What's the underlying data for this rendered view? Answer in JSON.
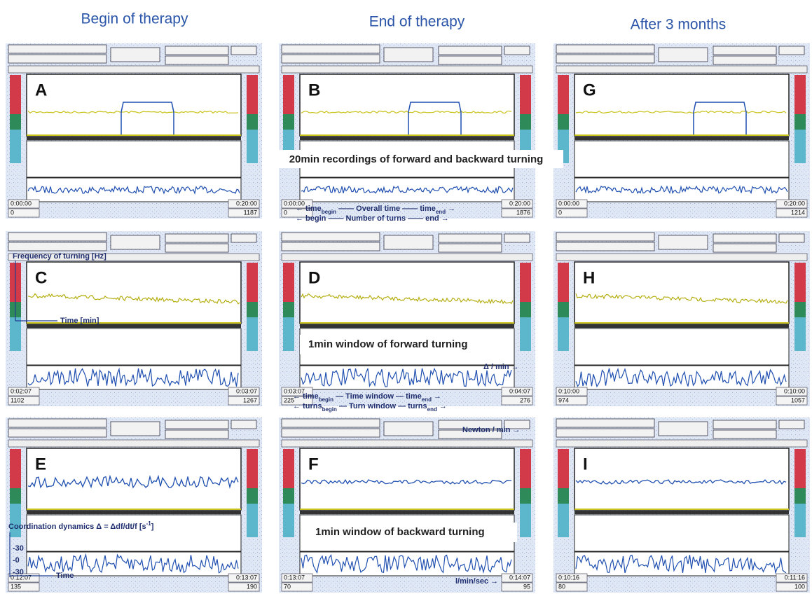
{
  "columns": [
    "Begin of therapy",
    "End of therapy",
    "After 3 months"
  ],
  "panels": [
    {
      "letter": "A",
      "footer": [
        "0:00:00",
        "0:20:00",
        "0",
        "1187"
      ]
    },
    {
      "letter": "B",
      "footer": [
        "0:00:00",
        "0:20:00",
        "0",
        "1876"
      ]
    },
    {
      "letter": "G",
      "footer": [
        "0:00:00",
        "0:20:00",
        "0",
        "1214"
      ]
    },
    {
      "letter": "C",
      "footer": [
        "0:02:07",
        "0:03:07",
        "1102",
        "1267"
      ]
    },
    {
      "letter": "D",
      "footer": [
        "0:03:07",
        "0:04:07",
        "225",
        "276"
      ]
    },
    {
      "letter": "H",
      "footer": [
        "0:10:00",
        "0:10:00",
        "974",
        "1057"
      ]
    },
    {
      "letter": "E",
      "footer": [
        "0:12:07",
        "0:13:07",
        "135",
        "190"
      ]
    },
    {
      "letter": "F",
      "footer": [
        "0:13:07",
        "0:14:07",
        "70",
        "95"
      ]
    },
    {
      "letter": "I",
      "footer": [
        "0:10:16",
        "0:11:16",
        "80",
        "100"
      ]
    }
  ],
  "annotations": {
    "recordings": "20min recordings of forward and backward turning",
    "overall_time": [
      "← time",
      "begin",
      " —— Overall time —— time",
      "end",
      " →"
    ],
    "number_of_turns": [
      "← begin —— Number of turns —— end →"
    ],
    "frequency": "Frequency of turning [Hz]",
    "time_min": "Time [min]",
    "forward": "1min window of forward turning",
    "delta_min": "Δ / min →",
    "time_window": [
      "← time",
      "begin",
      " — Time window — time",
      "end",
      " →"
    ],
    "turn_window": [
      "← turns",
      "begin",
      " — Turn window — turns",
      "end",
      " →"
    ],
    "newton": "Newton / min →",
    "backward": "1min window of backward turning",
    "lmin": "l/min/sec →",
    "coordination": [
      "Coordination dynamics Δ = Δdf/dt/f [s",
      "-1",
      "]"
    ],
    "scale": [
      "-30",
      "-0",
      "-30"
    ],
    "time": "Time"
  }
}
